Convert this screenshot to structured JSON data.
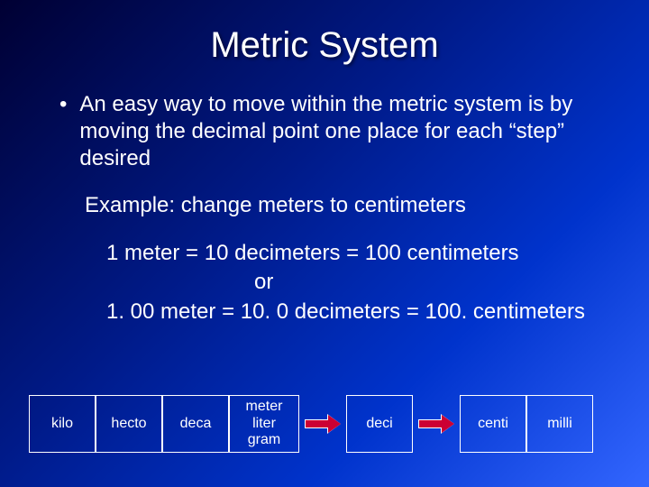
{
  "title": "Metric System",
  "bullet": "An easy way to move within the metric system is by moving the decimal point one place for each “step” desired",
  "example_label": "Example: change meters to centimeters",
  "conversion_line1": "1 meter =  10 decimeters = 100 centimeters",
  "conversion_or": "or",
  "conversion_line2": "1. 00 meter = 10. 0 decimeters = 100. centimeters",
  "prefixes": {
    "kilo": "kilo",
    "hecto": "hecto",
    "deca": "deca",
    "base1": "meter",
    "base2": "liter",
    "base3": "gram",
    "deci": "deci",
    "centi": "centi",
    "milli": "milli"
  },
  "colors": {
    "text": "#ffffff",
    "arrow_fill": "#cc0033",
    "box_border": "#ffffff",
    "bg_start": "#000033",
    "bg_end": "#3366ff"
  },
  "typography": {
    "title_fontsize": 40,
    "body_fontsize": 24,
    "prefix_fontsize": 16,
    "font_family": "Arial"
  },
  "layout": {
    "slide_width": 720,
    "slide_height": 540,
    "prefix_box_height": 64,
    "prefix_box_width_narrow": 74,
    "prefix_box_width_base": 78,
    "arrow_gap_width": 52
  }
}
